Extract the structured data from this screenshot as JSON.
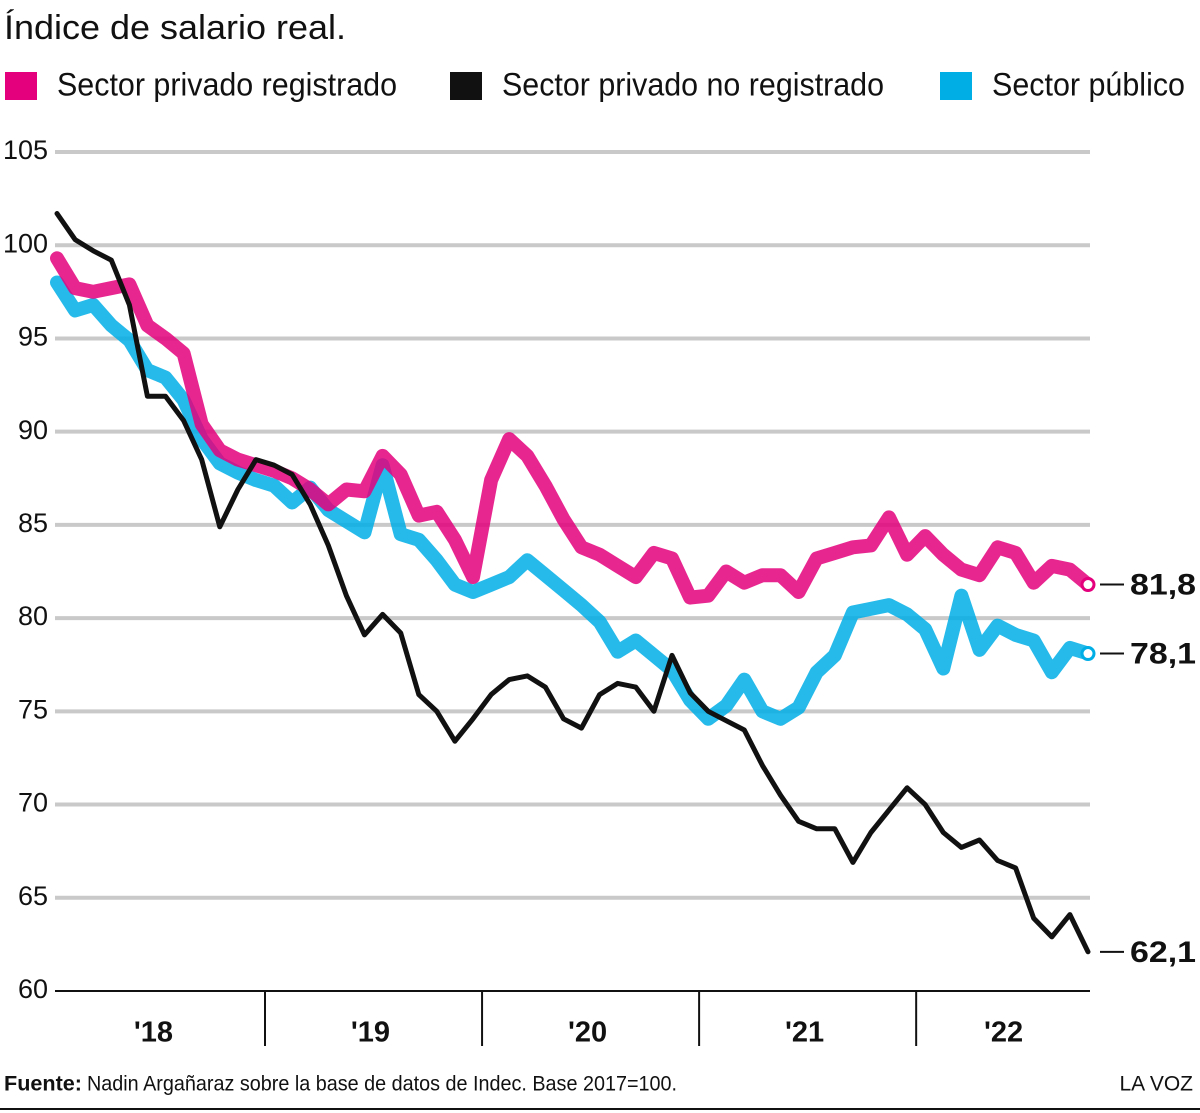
{
  "chart_data": {
    "type": "line",
    "title": "Índice de salario real.",
    "categories": [
      null,
      null,
      null,
      null,
      null,
      "'18",
      null,
      null,
      null,
      null,
      null,
      null,
      null,
      null,
      null,
      null,
      null,
      "'19",
      null,
      null,
      null,
      null,
      null,
      null,
      null,
      null,
      null,
      null,
      null,
      "'20",
      null,
      null,
      null,
      null,
      null,
      null,
      null,
      null,
      null,
      null,
      null,
      "'21",
      null,
      null,
      null,
      null,
      null,
      null,
      null,
      null,
      null,
      null,
      "'22",
      null,
      null,
      null,
      null,
      null
    ],
    "series": [
      {
        "name": "Sector privado registrado",
        "color": "#e4007c",
        "values": [
          99.3,
          97.7,
          97.5,
          97.7,
          97.9,
          95.7,
          95.0,
          94.2,
          90.4,
          89.0,
          88.5,
          88.2,
          87.9,
          87.5,
          86.9,
          86.1,
          86.9,
          86.8,
          88.7,
          87.7,
          85.5,
          85.7,
          84.2,
          82.2,
          87.4,
          89.6,
          88.7,
          87.1,
          85.3,
          83.8,
          83.4,
          82.8,
          82.2,
          83.5,
          83.2,
          81.1,
          81.2,
          82.5,
          81.9,
          82.3,
          82.3,
          81.4,
          83.2,
          83.5,
          83.8,
          83.9,
          85.4,
          83.4,
          84.4,
          83.4,
          82.6,
          82.3,
          83.8,
          83.5,
          81.9,
          82.8,
          82.6,
          81.8
        ],
        "value_labels": [
          null,
          null,
          null,
          null,
          null,
          null,
          null,
          null,
          null,
          null,
          null,
          null,
          null,
          null,
          null,
          null,
          null,
          null,
          null,
          null,
          null,
          null,
          null,
          null,
          null,
          null,
          null,
          null,
          null,
          null,
          null,
          null,
          null,
          null,
          null,
          null,
          null,
          null,
          null,
          null,
          null,
          null,
          null,
          null,
          null,
          null,
          null,
          null,
          null,
          null,
          null,
          null,
          null,
          null,
          null,
          null,
          null,
          "81,8"
        ]
      },
      {
        "name": "Sector privado no registrado",
        "color": "#111111",
        "values": [
          101.7,
          100.3,
          99.7,
          99.2,
          96.8,
          91.9,
          91.9,
          90.6,
          88.5,
          84.9,
          86.9,
          88.5,
          88.2,
          87.7,
          86.1,
          83.9,
          81.2,
          79.1,
          80.2,
          79.2,
          75.9,
          75.0,
          73.4,
          74.6,
          75.9,
          76.7,
          76.9,
          76.3,
          74.6,
          74.1,
          75.9,
          76.5,
          76.3,
          75.0,
          78.0,
          76.0,
          75.0,
          74.5,
          74.0,
          72.1,
          70.5,
          69.1,
          68.7,
          68.7,
          66.9,
          68.5,
          69.7,
          70.9,
          70.0,
          68.5,
          67.7,
          68.1,
          67.0,
          66.6,
          63.9,
          62.9,
          64.1,
          62.1
        ],
        "value_labels": [
          null,
          null,
          null,
          null,
          null,
          null,
          null,
          null,
          null,
          null,
          null,
          null,
          null,
          null,
          null,
          null,
          null,
          null,
          null,
          null,
          null,
          null,
          null,
          null,
          null,
          null,
          null,
          null,
          null,
          null,
          null,
          null,
          null,
          null,
          null,
          null,
          null,
          null,
          null,
          null,
          null,
          null,
          null,
          null,
          null,
          null,
          null,
          null,
          null,
          null,
          null,
          null,
          null,
          null,
          null,
          null,
          null,
          "62,1"
        ]
      },
      {
        "name": "Sector público",
        "color": "#00aee6",
        "values": [
          98.0,
          96.5,
          96.8,
          95.7,
          94.9,
          93.3,
          92.9,
          91.7,
          89.6,
          88.3,
          87.8,
          87.4,
          87.1,
          86.2,
          87.0,
          85.8,
          85.2,
          84.6,
          88.2,
          84.5,
          84.2,
          83.1,
          81.8,
          81.4,
          81.8,
          82.2,
          83.1,
          82.3,
          81.5,
          80.7,
          79.8,
          78.2,
          78.8,
          78.0,
          77.2,
          75.6,
          74.6,
          75.3,
          76.7,
          75.0,
          74.6,
          75.2,
          77.1,
          78.0,
          80.3,
          80.5,
          80.7,
          80.2,
          79.4,
          77.3,
          81.2,
          78.3,
          79.6,
          79.1,
          78.8,
          77.1,
          78.4,
          78.1
        ],
        "value_labels": [
          null,
          null,
          null,
          null,
          null,
          null,
          null,
          null,
          null,
          null,
          null,
          null,
          null,
          null,
          null,
          null,
          null,
          null,
          null,
          null,
          null,
          null,
          null,
          null,
          null,
          null,
          null,
          null,
          null,
          null,
          null,
          null,
          null,
          null,
          null,
          null,
          null,
          null,
          null,
          null,
          null,
          null,
          null,
          null,
          null,
          null,
          null,
          null,
          null,
          null,
          null,
          null,
          null,
          null,
          null,
          null,
          null,
          "78,1"
        ]
      }
    ],
    "ylim": [
      60,
      105
    ],
    "yticks": [
      60,
      65,
      70,
      75,
      80,
      85,
      90,
      95,
      100,
      105
    ],
    "grid": true,
    "source": {
      "label": "Fuente:",
      "text": "Nadin Argañaraz sobre la base de datos de Indec. Base 2017=100."
    },
    "credit": "LA VOZ"
  }
}
